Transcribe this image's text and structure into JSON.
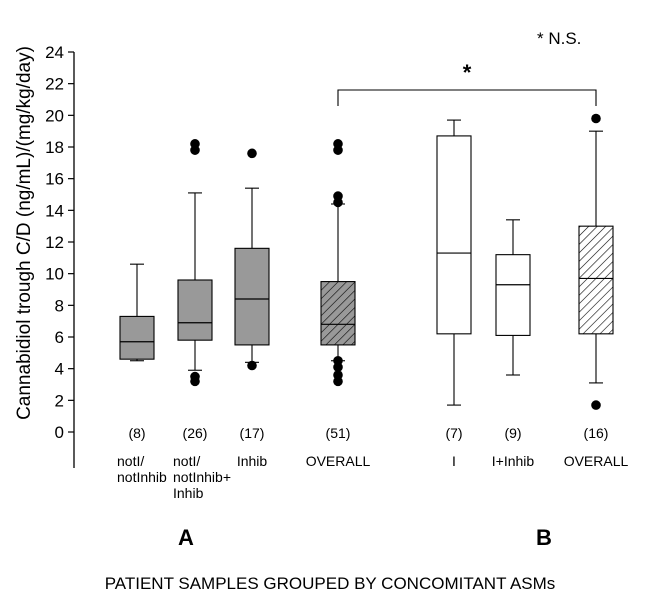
{
  "chart_data": {
    "type": "boxplot",
    "ylabel": "Cannabidiol trough C/D (ng/mL)/(mg/kg/day)",
    "xlabel": "PATIENT SAMPLES GROUPED BY CONCOMITANT ASMs",
    "ylim": [
      0,
      24
    ],
    "yticks": [
      "0",
      "2",
      "4",
      "6",
      "8",
      "10",
      "12",
      "14",
      "16",
      "18",
      "20",
      "22",
      "24"
    ],
    "ytick_values": [
      0,
      2,
      4,
      6,
      8,
      10,
      12,
      14,
      16,
      18,
      20,
      22,
      24
    ],
    "legend_note": "* N.S.",
    "significance": {
      "marker": "*",
      "from": 3,
      "to": 6
    },
    "group_labels": [
      {
        "text": "A",
        "center": 1.5
      },
      {
        "text": "B",
        "center": 5.0
      }
    ],
    "boxes": [
      {
        "label": [
          "notI/",
          "notInhib"
        ],
        "n": "(8)",
        "fill": "#999999",
        "pattern": "none",
        "whisker_low": 4.5,
        "q1": 4.6,
        "median": 5.7,
        "q3": 7.3,
        "whisker_high": 10.6,
        "outliers": []
      },
      {
        "label": [
          "notI/",
          "notInhib+",
          "Inhib"
        ],
        "n": "(26)",
        "fill": "#999999",
        "pattern": "none",
        "whisker_low": 3.9,
        "q1": 5.8,
        "median": 6.9,
        "q3": 9.6,
        "whisker_high": 15.1,
        "outliers": [
          3.2,
          3.5,
          17.8,
          18.2
        ]
      },
      {
        "label": [
          "Inhib"
        ],
        "n": "(17)",
        "fill": "#999999",
        "pattern": "none",
        "whisker_low": 4.4,
        "q1": 5.5,
        "median": 8.4,
        "q3": 11.6,
        "whisker_high": 15.4,
        "outliers": [
          4.2,
          17.6
        ]
      },
      {
        "label": [
          "OVERALL"
        ],
        "n": "(51)",
        "fill": "#999999",
        "pattern": "hatch",
        "whisker_low": 4.5,
        "q1": 5.5,
        "median": 6.8,
        "q3": 9.5,
        "whisker_high": 14.4,
        "outliers": [
          3.2,
          3.6,
          4.1,
          4.5,
          14.5,
          14.9,
          17.8,
          18.2
        ]
      },
      {
        "label": [
          "I"
        ],
        "n": "(7)",
        "fill": "#ffffff",
        "pattern": "none",
        "whisker_low": 1.7,
        "q1": 6.2,
        "median": 11.3,
        "q3": 18.7,
        "whisker_high": 19.7,
        "outliers": []
      },
      {
        "label": [
          "I+Inhib"
        ],
        "n": "(9)",
        "fill": "#ffffff",
        "pattern": "none",
        "whisker_low": 3.6,
        "q1": 6.1,
        "median": 9.3,
        "q3": 11.2,
        "whisker_high": 13.4,
        "outliers": []
      },
      {
        "label": [
          "OVERALL"
        ],
        "n": "(16)",
        "fill": "#ffffff",
        "pattern": "hatch",
        "whisker_low": 3.1,
        "q1": 6.2,
        "median": 9.7,
        "q3": 13.0,
        "whisker_high": 19.0,
        "outliers": [
          1.7,
          19.8
        ]
      }
    ]
  }
}
